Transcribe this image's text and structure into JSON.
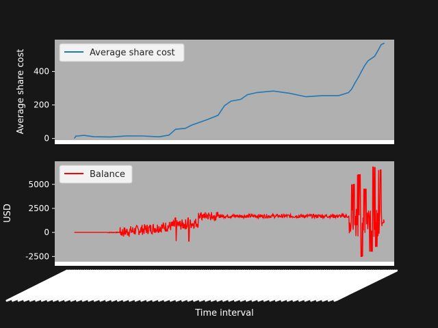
{
  "colors": {
    "figure_bg": "#171717",
    "axes_bg": "#b0b0b0",
    "average_line": "#1f77b4",
    "balance_line": "#ff0000",
    "text": "#ffffff",
    "legend_bg": "#f2f2f2",
    "legend_border": "#cccccc"
  },
  "chart_data": [
    {
      "type": "line",
      "title": "",
      "xlabel": "",
      "ylabel": "Average share cost",
      "ylim": [
        -30,
        590
      ],
      "xlim": [
        -2,
        102
      ],
      "yticks": [
        0,
        200,
        400
      ],
      "grid": false,
      "legend_placement": "top-left",
      "series": [
        {
          "name": "Average share cost",
          "x": [
            4,
            4.5,
            5,
            7,
            10,
            15,
            20,
            25,
            30,
            33,
            35,
            38,
            40,
            43,
            45,
            48,
            50,
            52,
            55,
            57,
            60,
            65,
            70,
            75,
            80,
            85,
            90,
            95,
            99
          ],
          "values": [
            0,
            15,
            15,
            14,
            13,
            13,
            12,
            12,
            14,
            22,
            50,
            60,
            85,
            100,
            110,
            140,
            200,
            220,
            230,
            265,
            277,
            279,
            268,
            254,
            256,
            251,
            244,
            245,
            262
          ],
          "tail_x": [
            88,
            89,
            90,
            91,
            92,
            93,
            94,
            95,
            96,
            97,
            98,
            99
          ],
          "tail_values": [
            275,
            300,
            330,
            360,
            405,
            440,
            460,
            475,
            495,
            525,
            555,
            570
          ]
        }
      ]
    },
    {
      "type": "line",
      "title": "",
      "xlabel": "Time interval",
      "ylabel": "USD",
      "ylim": [
        -3400,
        7400
      ],
      "xlim": [
        -2,
        102
      ],
      "yticks": [
        -2500,
        0,
        2500,
        5000
      ],
      "grid": false,
      "legend_placement": "top-left",
      "series": [
        {
          "name": "Balance",
          "x_start": 4,
          "x_end": 99,
          "baseline_until": 18,
          "phase2_until": 42,
          "phase3_until": 88,
          "level_mid": 1700,
          "spike_dates_x": [
            35,
            39,
            84,
            86,
            87
          ],
          "final_swings": [
            -1000,
            5000,
            800,
            6000,
            -2500,
            4500,
            2000,
            -2000,
            6800,
            -1500,
            6500,
            1000
          ]
        }
      ]
    }
  ]
}
